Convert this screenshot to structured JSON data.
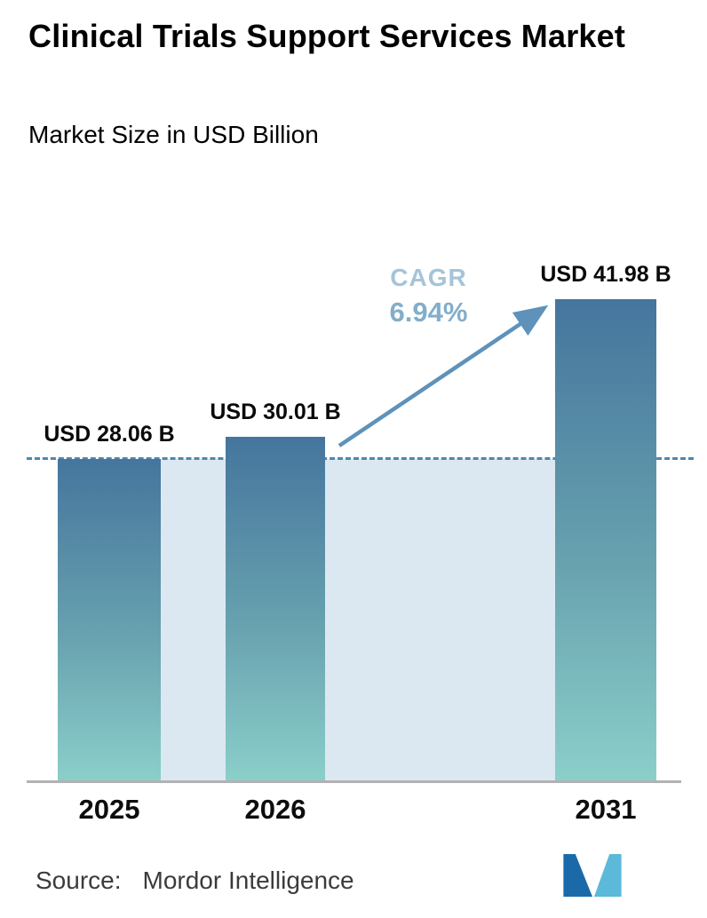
{
  "header": {
    "title": "Clinical Trials Support Services Market",
    "subtitle": "Market Size in USD Billion"
  },
  "chart_data": {
    "type": "bar",
    "categories": [
      "2025",
      "2026",
      "2031"
    ],
    "values": [
      28.06,
      30.01,
      41.98
    ],
    "value_labels": [
      "USD 28.06 B",
      "USD 30.01 B",
      "USD 41.98 B"
    ],
    "unit": "USD Billion",
    "title": "Clinical Trials Support Services Market",
    "subtitle": "Market Size in USD Billion",
    "annotations": {
      "cagr_label": "CAGR",
      "cagr_value": "6.94%"
    },
    "reference_line": {
      "style": "dashed",
      "at_value": 28.06
    },
    "ylim": [
      0,
      41.98
    ],
    "grid": false,
    "legend": "none",
    "colors": {
      "bar_gradient_top": "#45759d",
      "bar_gradient_bottom": "#8bcfca",
      "band_fill": "#dce8f1",
      "dashed_line": "#4d87ad",
      "cagr_label_text": "#a5c4d8",
      "cagr_value_text": "#82aecb",
      "arrow": "#5e92ba",
      "axis_line": "#b2b2b2"
    }
  },
  "footer": {
    "source_label": "Source:",
    "source_value": "Mordor Intelligence",
    "logo": {
      "name": "mordor-intelligence-logo",
      "dark": "#1a6aa9",
      "light": "#5cb9d9"
    }
  }
}
